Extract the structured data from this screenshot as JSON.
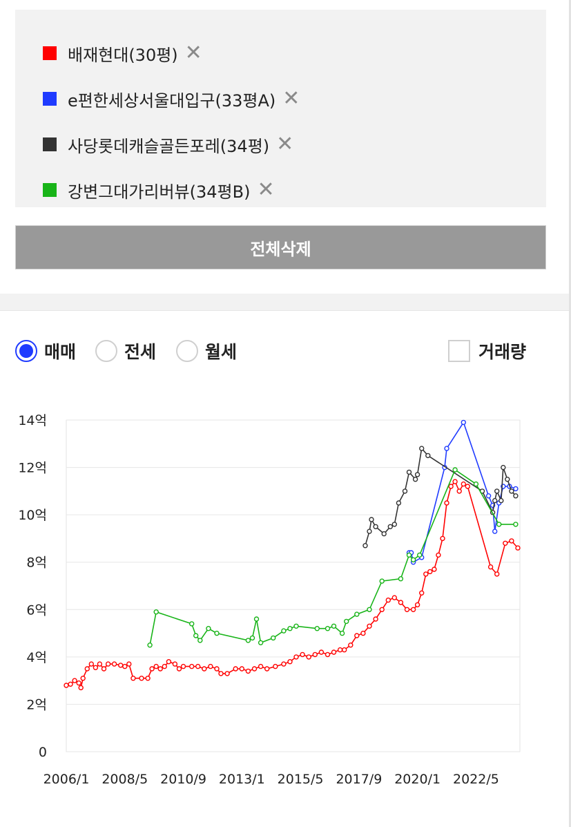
{
  "compare_list": [
    {
      "label": "배재현대(30평)",
      "color": "#ff0000"
    },
    {
      "label": "e편한세상서울대입구(33평A)",
      "color": "#1f3bff"
    },
    {
      "label": "사당롯데캐슬골든포레(34평)",
      "color": "#333333"
    },
    {
      "label": "강변그대가리버뷰(34평B)",
      "color": "#18b418"
    }
  ],
  "remove_symbol": "✕",
  "delete_all_label": "전체삭제",
  "options": {
    "sale": "매매",
    "jeonse": "전세",
    "monthly": "월세",
    "volume": "거래량",
    "selected": "sale"
  },
  "chart_data": {
    "type": "line",
    "ylim": [
      0,
      14
    ],
    "xlim": [
      "2006-01",
      "2024-02"
    ],
    "y_ticks": [
      "0",
      "2억",
      "4억",
      "6억",
      "8억",
      "10억",
      "12억",
      "14억"
    ],
    "x_ticks": [
      "2006/1",
      "2008/5",
      "2010/9",
      "2013/1",
      "2015/5",
      "2017/9",
      "2020/1",
      "2022/5"
    ],
    "grid": true,
    "unit": "억",
    "series": [
      {
        "color": "#ff0000",
        "points": [
          [
            "2006-01",
            2.8
          ],
          [
            "2006-03",
            2.85
          ],
          [
            "2006-05",
            3.0
          ],
          [
            "2006-07",
            2.9
          ],
          [
            "2006-08",
            2.7
          ],
          [
            "2006-09",
            3.1
          ],
          [
            "2006-11",
            3.5
          ],
          [
            "2007-01",
            3.7
          ],
          [
            "2007-03",
            3.55
          ],
          [
            "2007-05",
            3.7
          ],
          [
            "2007-07",
            3.5
          ],
          [
            "2007-09",
            3.7
          ],
          [
            "2007-12",
            3.7
          ],
          [
            "2008-03",
            3.65
          ],
          [
            "2008-05",
            3.6
          ],
          [
            "2008-07",
            3.7
          ],
          [
            "2008-09",
            3.1
          ],
          [
            "2009-01",
            3.1
          ],
          [
            "2009-04",
            3.1
          ],
          [
            "2009-06",
            3.5
          ],
          [
            "2009-08",
            3.6
          ],
          [
            "2009-10",
            3.5
          ],
          [
            "2009-12",
            3.6
          ],
          [
            "2010-02",
            3.8
          ],
          [
            "2010-05",
            3.7
          ],
          [
            "2010-07",
            3.5
          ],
          [
            "2010-09",
            3.6
          ],
          [
            "2011-01",
            3.6
          ],
          [
            "2011-04",
            3.6
          ],
          [
            "2011-07",
            3.5
          ],
          [
            "2011-10",
            3.6
          ],
          [
            "2012-01",
            3.5
          ],
          [
            "2012-03",
            3.3
          ],
          [
            "2012-06",
            3.3
          ],
          [
            "2012-10",
            3.5
          ],
          [
            "2013-01",
            3.5
          ],
          [
            "2013-04",
            3.4
          ],
          [
            "2013-07",
            3.5
          ],
          [
            "2013-10",
            3.6
          ],
          [
            "2014-01",
            3.5
          ],
          [
            "2014-05",
            3.6
          ],
          [
            "2014-09",
            3.7
          ],
          [
            "2014-12",
            3.8
          ],
          [
            "2015-03",
            4.0
          ],
          [
            "2015-06",
            4.1
          ],
          [
            "2015-09",
            4.0
          ],
          [
            "2015-12",
            4.1
          ],
          [
            "2016-03",
            4.2
          ],
          [
            "2016-06",
            4.1
          ],
          [
            "2016-09",
            4.2
          ],
          [
            "2016-12",
            4.3
          ],
          [
            "2017-02",
            4.3
          ],
          [
            "2017-05",
            4.5
          ],
          [
            "2017-08",
            4.9
          ],
          [
            "2017-11",
            5.0
          ],
          [
            "2018-02",
            5.3
          ],
          [
            "2018-05",
            5.6
          ],
          [
            "2018-08",
            6.0
          ],
          [
            "2018-11",
            6.4
          ],
          [
            "2019-02",
            6.5
          ],
          [
            "2019-05",
            6.3
          ],
          [
            "2019-08",
            6.0
          ],
          [
            "2019-11",
            6.0
          ],
          [
            "2020-01",
            6.2
          ],
          [
            "2020-03",
            6.7
          ],
          [
            "2020-05",
            7.5
          ],
          [
            "2020-07",
            7.6
          ],
          [
            "2020-09",
            7.7
          ],
          [
            "2020-11",
            8.3
          ],
          [
            "2021-01",
            9.0
          ],
          [
            "2021-03",
            10.5
          ],
          [
            "2021-05",
            11.2
          ],
          [
            "2021-07",
            11.4
          ],
          [
            "2021-09",
            11.0
          ],
          [
            "2021-11",
            11.3
          ],
          [
            "2022-01",
            11.2
          ],
          [
            "2022-12",
            7.8
          ],
          [
            "2023-03",
            7.5
          ],
          [
            "2023-07",
            8.8
          ],
          [
            "2023-10",
            8.9
          ],
          [
            "2024-01",
            8.6
          ]
        ]
      },
      {
        "color": "#1f3bff",
        "points": [
          [
            "2019-09",
            8.4
          ],
          [
            "2019-10",
            8.4
          ],
          [
            "2019-11",
            8.0
          ],
          [
            "2020-03",
            8.2
          ],
          [
            "2021-02",
            12.0
          ],
          [
            "2021-03",
            12.8
          ],
          [
            "2021-11",
            13.9
          ],
          [
            "2022-11",
            10.8
          ],
          [
            "2023-01",
            10.4
          ],
          [
            "2023-02",
            9.3
          ],
          [
            "2023-04",
            10.5
          ],
          [
            "2023-06",
            11.2
          ],
          [
            "2023-09",
            11.2
          ],
          [
            "2023-12",
            11.1
          ]
        ]
      },
      {
        "color": "#333333",
        "points": [
          [
            "2017-12",
            8.7
          ],
          [
            "2018-02",
            9.3
          ],
          [
            "2018-03",
            9.8
          ],
          [
            "2018-05",
            9.5
          ],
          [
            "2018-09",
            9.2
          ],
          [
            "2018-12",
            9.5
          ],
          [
            "2019-02",
            9.6
          ],
          [
            "2019-04",
            10.5
          ],
          [
            "2019-07",
            11.0
          ],
          [
            "2019-09",
            11.8
          ],
          [
            "2019-12",
            11.5
          ],
          [
            "2020-01",
            11.7
          ],
          [
            "2020-03",
            12.8
          ],
          [
            "2020-06",
            12.5
          ],
          [
            "2022-08",
            11.0
          ],
          [
            "2023-01",
            10.1
          ],
          [
            "2023-02",
            10.6
          ],
          [
            "2023-03",
            11.0
          ],
          [
            "2023-05",
            10.6
          ],
          [
            "2023-06",
            12.0
          ],
          [
            "2023-08",
            11.5
          ],
          [
            "2023-10",
            11.0
          ],
          [
            "2023-12",
            10.8
          ]
        ]
      },
      {
        "color": "#18b418",
        "points": [
          [
            "2009-05",
            4.5
          ],
          [
            "2009-08",
            5.9
          ],
          [
            "2011-01",
            5.4
          ],
          [
            "2011-03",
            4.9
          ],
          [
            "2011-05",
            4.7
          ],
          [
            "2011-09",
            5.2
          ],
          [
            "2012-01",
            5.0
          ],
          [
            "2013-04",
            4.7
          ],
          [
            "2013-06",
            4.8
          ],
          [
            "2013-08",
            5.6
          ],
          [
            "2013-10",
            4.6
          ],
          [
            "2014-04",
            4.8
          ],
          [
            "2014-09",
            5.1
          ],
          [
            "2014-12",
            5.2
          ],
          [
            "2015-03",
            5.3
          ],
          [
            "2016-01",
            5.2
          ],
          [
            "2016-06",
            5.2
          ],
          [
            "2016-09",
            5.3
          ],
          [
            "2017-01",
            5.0
          ],
          [
            "2017-03",
            5.5
          ],
          [
            "2017-08",
            5.8
          ],
          [
            "2018-02",
            6.0
          ],
          [
            "2018-08",
            7.2
          ],
          [
            "2019-05",
            7.3
          ],
          [
            "2019-09",
            8.3
          ],
          [
            "2019-11",
            8.1
          ],
          [
            "2020-02",
            8.3
          ],
          [
            "2021-07",
            11.9
          ],
          [
            "2022-05",
            11.3
          ],
          [
            "2023-04",
            9.6
          ],
          [
            "2023-12",
            9.6
          ]
        ]
      }
    ]
  }
}
